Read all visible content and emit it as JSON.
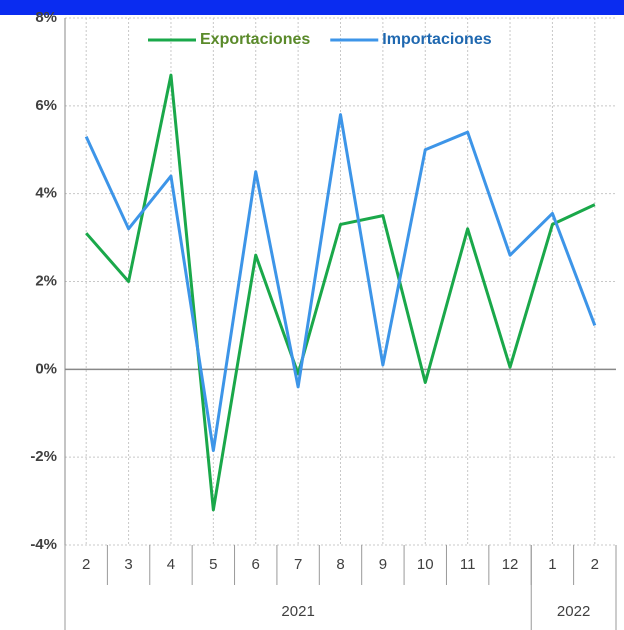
{
  "chart_data": {
    "type": "line",
    "categories": [
      "2",
      "3",
      "4",
      "5",
      "6",
      "7",
      "8",
      "9",
      "10",
      "11",
      "12",
      "1",
      "2"
    ],
    "x_groups": [
      {
        "label": "2021",
        "count": 11
      },
      {
        "label": "2022",
        "count": 2
      }
    ],
    "series": [
      {
        "name": "Exportaciones",
        "color": "#1aa84a",
        "label_color": "#5a8a2a",
        "values": [
          3.1,
          2.0,
          6.7,
          -3.2,
          2.6,
          -0.1,
          3.3,
          3.5,
          -0.3,
          3.2,
          0.05,
          3.3,
          3.75
        ]
      },
      {
        "name": "Importaciones",
        "color": "#3d95e8",
        "label_color": "#1f68b0",
        "values": [
          5.3,
          3.2,
          4.4,
          -1.85,
          4.5,
          -0.4,
          5.8,
          0.1,
          5.0,
          5.4,
          2.6,
          3.55,
          1.0
        ]
      }
    ],
    "ylim": [
      -4,
      8
    ],
    "yticks": [
      {
        "value": -4,
        "label": "-4%"
      },
      {
        "value": -2,
        "label": "-2%"
      },
      {
        "value": 0,
        "label": "0%"
      },
      {
        "value": 2,
        "label": "2%"
      },
      {
        "value": 4,
        "label": "4%"
      },
      {
        "value": 6,
        "label": "6%"
      },
      {
        "value": 8,
        "label": "8%"
      }
    ],
    "grid": true,
    "legend": "top"
  }
}
